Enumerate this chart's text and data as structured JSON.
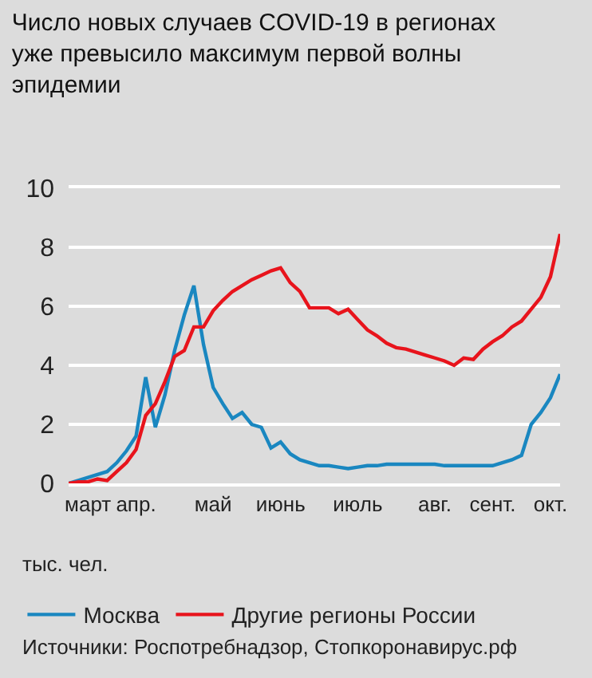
{
  "chart_data": {
    "type": "line",
    "title": "Число новых случаев COVID-19 в регионах уже превысило максимум первой волны эпидемии",
    "ylabel": "тыс. чел.",
    "annotations": [
      "Источники: Роспотребнадзор, Стопкоронавирус.рф"
    ],
    "categories": [
      null,
      null,
      "март",
      null,
      null,
      null,
      null,
      "апр.",
      null,
      null,
      null,
      null,
      null,
      null,
      null,
      "май",
      null,
      null,
      null,
      null,
      null,
      null,
      "июнь",
      null,
      null,
      null,
      null,
      null,
      null,
      null,
      "июль",
      null,
      null,
      null,
      null,
      null,
      null,
      null,
      "авг.",
      null,
      null,
      null,
      null,
      null,
      "сент.",
      null,
      null,
      null,
      null,
      null,
      "окт.",
      null
    ],
    "ylim": [
      0,
      10
    ],
    "yticks": [
      0,
      2,
      4,
      6,
      8,
      10
    ],
    "grid": "y",
    "legend": "bottom",
    "marker": "none",
    "line_style": "solid",
    "series": [
      {
        "name": "Москва",
        "color": "#1a87c0",
        "values": [
          0,
          0.1,
          0.2,
          0.3,
          0.4,
          0.7,
          1.1,
          1.6,
          3.6,
          1.9,
          3.0,
          4.5,
          5.7,
          6.7,
          4.7,
          3.25,
          2.7,
          2.2,
          2.4,
          2.0,
          1.9,
          1.2,
          1.4,
          1.0,
          0.8,
          0.7,
          0.6,
          0.6,
          0.55,
          0.5,
          0.55,
          0.6,
          0.6,
          0.65,
          0.65,
          0.65,
          0.65,
          0.65,
          0.65,
          0.6,
          0.6,
          0.6,
          0.6,
          0.6,
          0.6,
          0.7,
          0.8,
          0.95,
          2.0,
          2.4,
          2.9,
          3.7
        ]
      },
      {
        "name": "Другие регионы России",
        "color": "#e8141c",
        "values": [
          0,
          0.05,
          0.05,
          0.15,
          0.1,
          0.4,
          0.7,
          1.15,
          2.3,
          2.7,
          3.45,
          4.3,
          4.5,
          5.3,
          5.3,
          5.85,
          6.2,
          6.5,
          6.7,
          6.9,
          7.05,
          7.2,
          7.3,
          6.8,
          6.5,
          5.95,
          5.95,
          5.95,
          5.75,
          5.9,
          5.55,
          5.2,
          5.0,
          4.75,
          4.6,
          4.55,
          4.45,
          4.35,
          4.25,
          4.15,
          4.0,
          4.25,
          4.2,
          4.55,
          4.8,
          5.0,
          5.3,
          5.5,
          5.9,
          6.3,
          7.0,
          8.45
        ]
      }
    ]
  }
}
